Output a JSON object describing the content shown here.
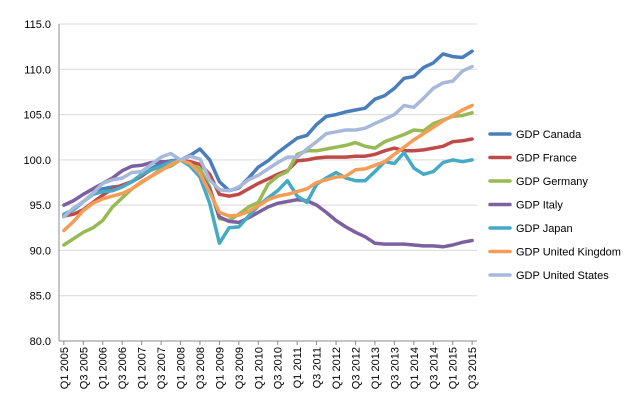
{
  "chart_data": {
    "type": "line",
    "title": "",
    "xlabel": "",
    "ylabel": "",
    "ylim": [
      80.0,
      115.0
    ],
    "yticks": [
      "80.0",
      "85.0",
      "90.0",
      "95.0",
      "100.0",
      "105.0",
      "110.0",
      "115.0"
    ],
    "grid": "horizontal",
    "legend_position": "right",
    "x": [
      "Q1 2005",
      "Q2 2005",
      "Q3 2005",
      "Q4 2005",
      "Q1 2006",
      "Q2 2006",
      "Q3 2006",
      "Q4 2006",
      "Q1 2007",
      "Q2 2007",
      "Q3 2007",
      "Q4 2007",
      "Q1 2008",
      "Q2 2008",
      "Q3 2008",
      "Q4 2008",
      "Q1 2009",
      "Q2 2009",
      "Q3 2009",
      "Q4 2009",
      "Q1 2010",
      "Q2 2010",
      "Q3 2010",
      "Q4 2010",
      "Q1 2011",
      "Q2 2011",
      "Q3 2011",
      "Q4 2011",
      "Q1 2012",
      "Q2 2012",
      "Q3 2012",
      "Q4 2012",
      "Q1 2013",
      "Q2 2013",
      "Q3 2013",
      "Q4 2013",
      "Q1 2014",
      "Q2 2014",
      "Q3 2014",
      "Q4 2014",
      "Q1 2015",
      "Q2 2015",
      "Q3 2015"
    ],
    "xtick_labels": [
      "Q1 2005",
      "Q3 2005",
      "Q1 2006",
      "Q3 2006",
      "Q1 2007",
      "Q3 2007",
      "Q1 2008",
      "Q3 2008",
      "Q1 2009",
      "Q3 2009",
      "Q1 2010",
      "Q3 2010",
      "Q1 2011",
      "Q3 2011",
      "Q1 2012",
      "Q3 2012",
      "Q1 2013",
      "Q3 2013",
      "Q1 2014",
      "Q3 2014",
      "Q1 2015",
      "Q3 2015"
    ],
    "series": [
      {
        "name": "GDP Canada",
        "color": "#4A7EBB",
        "values": [
          93.8,
          94.5,
          95.4,
          96.2,
          96.8,
          97.0,
          97.1,
          97.6,
          98.2,
          99.0,
          99.7,
          99.9,
          100.0,
          100.5,
          101.2,
          100.0,
          97.6,
          96.6,
          96.9,
          98.0,
          99.2,
          99.9,
          100.8,
          101.6,
          102.4,
          102.7,
          103.9,
          104.8,
          105.0,
          105.3,
          105.5,
          105.7,
          106.7,
          107.1,
          107.9,
          109.0,
          109.2,
          110.2,
          110.7,
          111.7,
          111.4,
          111.3,
          112.0
        ]
      },
      {
        "name": "GDP France",
        "color": "#BE4B48",
        "values": [
          93.8,
          94.0,
          94.5,
          95.3,
          96.1,
          96.8,
          97.2,
          97.6,
          98.3,
          98.9,
          99.3,
          99.6,
          100.0,
          99.8,
          99.5,
          98.4,
          96.2,
          96.0,
          96.2,
          96.8,
          97.4,
          97.9,
          98.4,
          98.8,
          99.9,
          100.0,
          100.2,
          100.3,
          100.3,
          100.3,
          100.4,
          100.4,
          100.6,
          101.0,
          101.3,
          101.0,
          101.0,
          101.1,
          101.3,
          101.5,
          102.0,
          102.1,
          102.3
        ]
      },
      {
        "name": "GDP Germany",
        "color": "#98B954",
        "values": [
          90.6,
          91.3,
          92.0,
          92.5,
          93.3,
          94.8,
          95.8,
          96.8,
          97.5,
          98.2,
          99.0,
          99.3,
          100.0,
          99.5,
          99.0,
          97.0,
          93.5,
          93.3,
          94.0,
          94.8,
          95.3,
          97.3,
          98.2,
          98.7,
          100.6,
          101.0,
          101.0,
          101.2,
          101.4,
          101.6,
          101.9,
          101.5,
          101.3,
          102.0,
          102.4,
          102.8,
          103.3,
          103.2,
          104.0,
          104.4,
          104.8,
          104.9,
          105.2
        ]
      },
      {
        "name": "GDP Italy",
        "color": "#7D60A0",
        "values": [
          95.0,
          95.5,
          96.2,
          96.8,
          97.4,
          98.0,
          98.8,
          99.3,
          99.4,
          99.7,
          99.8,
          99.8,
          100.0,
          99.5,
          98.5,
          96.8,
          93.7,
          93.2,
          93.1,
          93.6,
          94.2,
          94.8,
          95.2,
          95.4,
          95.6,
          95.5,
          95.0,
          94.2,
          93.3,
          92.6,
          92.0,
          91.5,
          90.8,
          90.7,
          90.7,
          90.7,
          90.6,
          90.5,
          90.5,
          90.4,
          90.6,
          90.9,
          91.1
        ]
      },
      {
        "name": "GDP Japan",
        "color": "#46AAC5",
        "values": [
          94.0,
          94.5,
          95.4,
          96.2,
          96.5,
          96.6,
          97.0,
          97.6,
          98.4,
          98.9,
          99.3,
          99.8,
          100.0,
          99.3,
          98.1,
          95.2,
          90.8,
          92.5,
          92.6,
          93.8,
          94.9,
          95.8,
          96.6,
          97.7,
          96.0,
          95.3,
          97.3,
          98.0,
          98.6,
          98.0,
          97.7,
          97.7,
          98.7,
          99.8,
          99.6,
          100.8,
          99.1,
          98.4,
          98.7,
          99.7,
          100.0,
          99.8,
          100.0
        ]
      },
      {
        "name": "GDP United Kingdom",
        "color": "#F59D56",
        "values": [
          92.2,
          93.2,
          94.4,
          95.2,
          95.7,
          96.0,
          96.3,
          96.8,
          97.6,
          98.2,
          98.8,
          99.5,
          100.0,
          99.6,
          98.5,
          96.4,
          94.2,
          93.8,
          93.9,
          94.3,
          94.9,
          95.6,
          96.0,
          96.2,
          96.5,
          96.8,
          97.5,
          97.8,
          98.1,
          98.2,
          98.9,
          99.0,
          99.4,
          99.8,
          100.6,
          101.4,
          102.2,
          102.9,
          103.6,
          104.3,
          104.9,
          105.5,
          106.0
        ]
      },
      {
        "name": "GDP United States",
        "color": "#A6B9DB",
        "values": [
          93.7,
          94.7,
          95.4,
          96.3,
          97.4,
          97.8,
          98.0,
          98.6,
          98.7,
          99.5,
          100.3,
          100.7,
          100.0,
          100.4,
          100.1,
          97.8,
          96.7,
          96.6,
          97.0,
          97.8,
          98.3,
          99.0,
          99.7,
          100.3,
          100.3,
          101.2,
          102.0,
          102.9,
          103.1,
          103.3,
          103.3,
          103.5,
          104.0,
          104.5,
          105.0,
          106.0,
          105.8,
          106.8,
          107.9,
          108.5,
          108.7,
          109.8,
          110.3
        ]
      }
    ]
  }
}
